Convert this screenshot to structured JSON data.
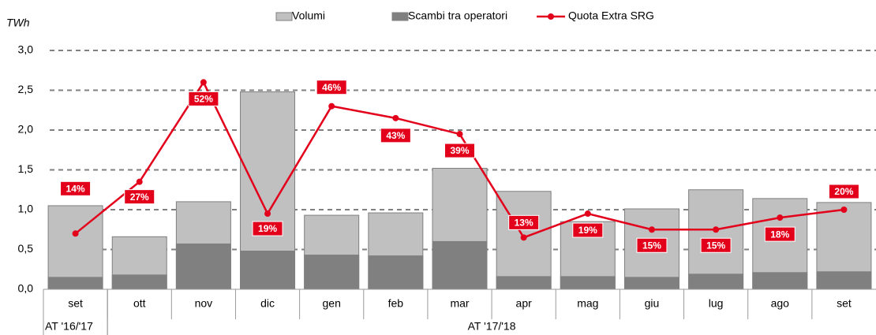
{
  "chart_data": {
    "type": "bar",
    "y_label": "TWh",
    "groups": [
      {
        "label": "AT '16/'17",
        "categories": [
          "set"
        ]
      },
      {
        "label": "AT '17/'18",
        "categories": [
          "ott",
          "nov",
          "dic",
          "gen",
          "feb",
          "mar",
          "apr",
          "mag",
          "giu",
          "lug",
          "ago",
          "set"
        ]
      }
    ],
    "series": [
      {
        "name": "Volumi",
        "type": "bar",
        "color": "#c0c0c0",
        "values": [
          1.05,
          0.66,
          1.1,
          2.48,
          0.93,
          0.96,
          1.52,
          1.23,
          0.85,
          1.01,
          1.25,
          1.14,
          1.09
        ]
      },
      {
        "name": "Scambi tra operatori",
        "type": "bar",
        "color": "#808080",
        "values": [
          0.15,
          0.18,
          0.57,
          0.48,
          0.43,
          0.42,
          0.6,
          0.16,
          0.16,
          0.15,
          0.19,
          0.21,
          0.22
        ]
      },
      {
        "name": "Quota Extra SRG",
        "type": "line",
        "axis": "y2",
        "color": "#e3001b",
        "values": [
          14,
          27,
          52,
          19,
          46,
          43,
          39,
          13,
          19,
          15,
          15,
          18,
          20
        ],
        "value_labels": [
          "14%",
          "27%",
          "52%",
          "19%",
          "46%",
          "43%",
          "39%",
          "13%",
          "19%",
          "15%",
          "15%",
          "18%",
          "20%"
        ]
      }
    ],
    "ylim": [
      0,
      3
    ],
    "yticks": [
      {
        "value": 0,
        "label": "0,0"
      },
      {
        "value": 0.5,
        "label": "0,5"
      },
      {
        "value": 1,
        "label": "1,0"
      },
      {
        "value": 1.5,
        "label": "1,5"
      },
      {
        "value": 2,
        "label": "2,0"
      },
      {
        "value": 2.5,
        "label": "2,5"
      },
      {
        "value": 3,
        "label": "3,0"
      }
    ],
    "y2lim": [
      0,
      60
    ],
    "grid": true,
    "legend": "top"
  }
}
